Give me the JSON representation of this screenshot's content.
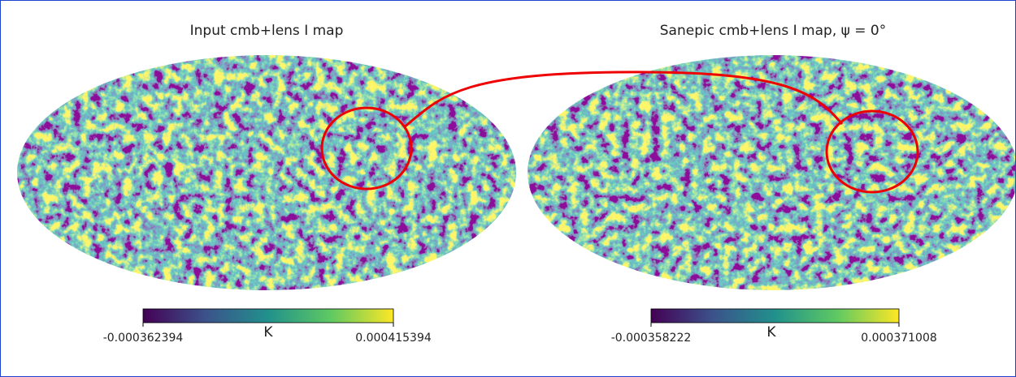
{
  "panels": [
    {
      "title": "Input cmb+lens I map",
      "colorbar": {
        "min": "-0.000362394",
        "max": "0.000415394",
        "unit": "K"
      }
    },
    {
      "title": "Sanepic cmb+lens I map, ψ = 0°",
      "colorbar": {
        "min": "-0.000358222",
        "max": "0.000371008",
        "unit": "K"
      }
    }
  ]
}
